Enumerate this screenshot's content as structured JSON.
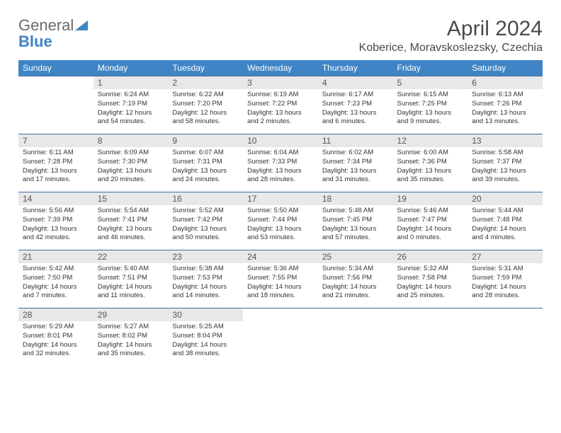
{
  "logo": {
    "word1": "General",
    "word2": "Blue"
  },
  "title": "April 2024",
  "location": "Koberice, Moravskoslezsky, Czechia",
  "colors": {
    "header_bg": "#3f84c4",
    "header_text": "#ffffff",
    "daynum_bg": "#e8e8e8",
    "row_border": "#3f6fa0",
    "text": "#333333",
    "logo_gray": "#6b6b6b",
    "logo_blue": "#3f84c4"
  },
  "fonts": {
    "title_size": 30,
    "location_size": 16,
    "weekday_size": 12,
    "cell_size": 9.5
  },
  "weekdays": [
    "Sunday",
    "Monday",
    "Tuesday",
    "Wednesday",
    "Thursday",
    "Friday",
    "Saturday"
  ],
  "weeks": [
    [
      {
        "num": "",
        "sunrise": "",
        "sunset": "",
        "daylight": ""
      },
      {
        "num": "1",
        "sunrise": "Sunrise: 6:24 AM",
        "sunset": "Sunset: 7:19 PM",
        "daylight": "Daylight: 12 hours and 54 minutes."
      },
      {
        "num": "2",
        "sunrise": "Sunrise: 6:22 AM",
        "sunset": "Sunset: 7:20 PM",
        "daylight": "Daylight: 12 hours and 58 minutes."
      },
      {
        "num": "3",
        "sunrise": "Sunrise: 6:19 AM",
        "sunset": "Sunset: 7:22 PM",
        "daylight": "Daylight: 13 hours and 2 minutes."
      },
      {
        "num": "4",
        "sunrise": "Sunrise: 6:17 AM",
        "sunset": "Sunset: 7:23 PM",
        "daylight": "Daylight: 13 hours and 6 minutes."
      },
      {
        "num": "5",
        "sunrise": "Sunrise: 6:15 AM",
        "sunset": "Sunset: 7:25 PM",
        "daylight": "Daylight: 13 hours and 9 minutes."
      },
      {
        "num": "6",
        "sunrise": "Sunrise: 6:13 AM",
        "sunset": "Sunset: 7:26 PM",
        "daylight": "Daylight: 13 hours and 13 minutes."
      }
    ],
    [
      {
        "num": "7",
        "sunrise": "Sunrise: 6:11 AM",
        "sunset": "Sunset: 7:28 PM",
        "daylight": "Daylight: 13 hours and 17 minutes."
      },
      {
        "num": "8",
        "sunrise": "Sunrise: 6:09 AM",
        "sunset": "Sunset: 7:30 PM",
        "daylight": "Daylight: 13 hours and 20 minutes."
      },
      {
        "num": "9",
        "sunrise": "Sunrise: 6:07 AM",
        "sunset": "Sunset: 7:31 PM",
        "daylight": "Daylight: 13 hours and 24 minutes."
      },
      {
        "num": "10",
        "sunrise": "Sunrise: 6:04 AM",
        "sunset": "Sunset: 7:33 PM",
        "daylight": "Daylight: 13 hours and 28 minutes."
      },
      {
        "num": "11",
        "sunrise": "Sunrise: 6:02 AM",
        "sunset": "Sunset: 7:34 PM",
        "daylight": "Daylight: 13 hours and 31 minutes."
      },
      {
        "num": "12",
        "sunrise": "Sunrise: 6:00 AM",
        "sunset": "Sunset: 7:36 PM",
        "daylight": "Daylight: 13 hours and 35 minutes."
      },
      {
        "num": "13",
        "sunrise": "Sunrise: 5:58 AM",
        "sunset": "Sunset: 7:37 PM",
        "daylight": "Daylight: 13 hours and 39 minutes."
      }
    ],
    [
      {
        "num": "14",
        "sunrise": "Sunrise: 5:56 AM",
        "sunset": "Sunset: 7:39 PM",
        "daylight": "Daylight: 13 hours and 42 minutes."
      },
      {
        "num": "15",
        "sunrise": "Sunrise: 5:54 AM",
        "sunset": "Sunset: 7:41 PM",
        "daylight": "Daylight: 13 hours and 46 minutes."
      },
      {
        "num": "16",
        "sunrise": "Sunrise: 5:52 AM",
        "sunset": "Sunset: 7:42 PM",
        "daylight": "Daylight: 13 hours and 50 minutes."
      },
      {
        "num": "17",
        "sunrise": "Sunrise: 5:50 AM",
        "sunset": "Sunset: 7:44 PM",
        "daylight": "Daylight: 13 hours and 53 minutes."
      },
      {
        "num": "18",
        "sunrise": "Sunrise: 5:48 AM",
        "sunset": "Sunset: 7:45 PM",
        "daylight": "Daylight: 13 hours and 57 minutes."
      },
      {
        "num": "19",
        "sunrise": "Sunrise: 5:46 AM",
        "sunset": "Sunset: 7:47 PM",
        "daylight": "Daylight: 14 hours and 0 minutes."
      },
      {
        "num": "20",
        "sunrise": "Sunrise: 5:44 AM",
        "sunset": "Sunset: 7:48 PM",
        "daylight": "Daylight: 14 hours and 4 minutes."
      }
    ],
    [
      {
        "num": "21",
        "sunrise": "Sunrise: 5:42 AM",
        "sunset": "Sunset: 7:50 PM",
        "daylight": "Daylight: 14 hours and 7 minutes."
      },
      {
        "num": "22",
        "sunrise": "Sunrise: 5:40 AM",
        "sunset": "Sunset: 7:51 PM",
        "daylight": "Daylight: 14 hours and 11 minutes."
      },
      {
        "num": "23",
        "sunrise": "Sunrise: 5:38 AM",
        "sunset": "Sunset: 7:53 PM",
        "daylight": "Daylight: 14 hours and 14 minutes."
      },
      {
        "num": "24",
        "sunrise": "Sunrise: 5:36 AM",
        "sunset": "Sunset: 7:55 PM",
        "daylight": "Daylight: 14 hours and 18 minutes."
      },
      {
        "num": "25",
        "sunrise": "Sunrise: 5:34 AM",
        "sunset": "Sunset: 7:56 PM",
        "daylight": "Daylight: 14 hours and 21 minutes."
      },
      {
        "num": "26",
        "sunrise": "Sunrise: 5:32 AM",
        "sunset": "Sunset: 7:58 PM",
        "daylight": "Daylight: 14 hours and 25 minutes."
      },
      {
        "num": "27",
        "sunrise": "Sunrise: 5:31 AM",
        "sunset": "Sunset: 7:59 PM",
        "daylight": "Daylight: 14 hours and 28 minutes."
      }
    ],
    [
      {
        "num": "28",
        "sunrise": "Sunrise: 5:29 AM",
        "sunset": "Sunset: 8:01 PM",
        "daylight": "Daylight: 14 hours and 32 minutes."
      },
      {
        "num": "29",
        "sunrise": "Sunrise: 5:27 AM",
        "sunset": "Sunset: 8:02 PM",
        "daylight": "Daylight: 14 hours and 35 minutes."
      },
      {
        "num": "30",
        "sunrise": "Sunrise: 5:25 AM",
        "sunset": "Sunset: 8:04 PM",
        "daylight": "Daylight: 14 hours and 38 minutes."
      },
      {
        "num": "",
        "sunrise": "",
        "sunset": "",
        "daylight": ""
      },
      {
        "num": "",
        "sunrise": "",
        "sunset": "",
        "daylight": ""
      },
      {
        "num": "",
        "sunrise": "",
        "sunset": "",
        "daylight": ""
      },
      {
        "num": "",
        "sunrise": "",
        "sunset": "",
        "daylight": ""
      }
    ]
  ]
}
